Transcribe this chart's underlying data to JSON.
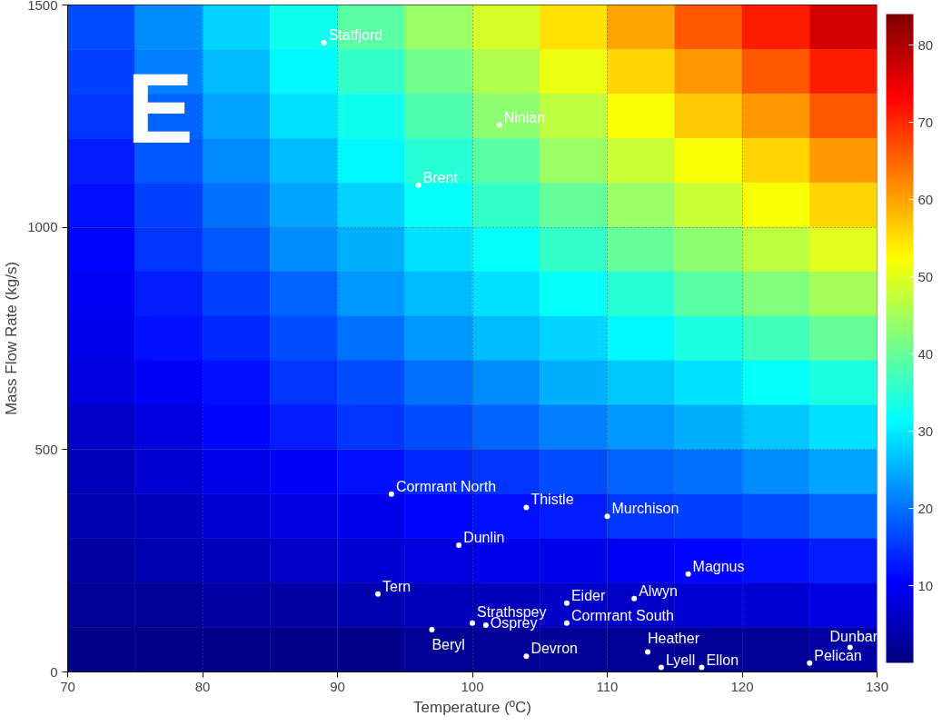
{
  "chart_data": [
    {
      "type": "scatter",
      "xlabel": "Temperature (ºC)",
      "ylabel": "Mass Flow Rate (kg/s)",
      "xlim": [
        70,
        130
      ],
      "xticks": [
        70,
        80,
        90,
        100,
        110,
        120,
        130
      ],
      "ylim": [
        0,
        1500
      ],
      "yticks": [
        0,
        500,
        1000,
        1500
      ],
      "grid": true,
      "marker": "circle",
      "series": [
        {
          "color": "#ffffff",
          "x": [
            89,
            102,
            96,
            94,
            104,
            110,
            99,
            116,
            93,
            107,
            112,
            100,
            101,
            107,
            97,
            113,
            104,
            114,
            117,
            128,
            125
          ],
          "values": [
            1415,
            1230,
            1095,
            400,
            370,
            350,
            285,
            220,
            175,
            155,
            165,
            110,
            105,
            110,
            95,
            45,
            35,
            10,
            10,
            55,
            20
          ]
        }
      ],
      "annotations": [
        "E",
        {
          "text": "Statfjord",
          "x": 89,
          "y": 1415
        },
        {
          "text": "Ninian",
          "x": 102,
          "y": 1230
        },
        {
          "text": "Brent",
          "x": 96,
          "y": 1095
        },
        {
          "text": "Cormrant North",
          "x": 94,
          "y": 400
        },
        {
          "text": "Thistle",
          "x": 104,
          "y": 370
        },
        {
          "text": "Murchison",
          "x": 110,
          "y": 350
        },
        {
          "text": "Dunlin",
          "x": 99,
          "y": 285
        },
        {
          "text": "Magnus",
          "x": 116,
          "y": 220
        },
        {
          "text": "Tern",
          "x": 93,
          "y": 175
        },
        {
          "text": "Eider",
          "x": 107,
          "y": 155
        },
        {
          "text": "Alwyn",
          "x": 112,
          "y": 165
        },
        {
          "text": "Strathspey",
          "x": 100,
          "y": 110
        },
        {
          "text": "Osprey",
          "x": 101,
          "y": 105
        },
        {
          "text": "Cormrant South",
          "x": 107,
          "y": 110
        },
        {
          "text": "Beryl",
          "x": 97,
          "y": 95
        },
        {
          "text": "Heather",
          "x": 113,
          "y": 45
        },
        {
          "text": "Devron",
          "x": 104,
          "y": 35
        },
        {
          "text": "Lyell",
          "x": 114,
          "y": 10
        },
        {
          "text": "Ellon",
          "x": 117,
          "y": 10
        },
        {
          "text": "Dunbar",
          "x": 128,
          "y": 55
        },
        {
          "text": "Pelican",
          "x": 125,
          "y": 20
        }
      ]
    },
    {
      "type": "heatmap",
      "clim": [
        0,
        84
      ],
      "cticks": [
        10,
        20,
        30,
        40,
        50,
        60,
        70,
        80
      ],
      "categories": [
        null,
        null,
        null,
        null,
        null,
        null,
        null,
        null,
        null,
        null,
        null,
        null
      ],
      "y_categories": [
        null,
        null,
        null,
        null,
        null,
        null,
        null,
        null,
        null,
        null,
        null,
        null,
        null,
        null,
        null
      ],
      "cells": [
        [
          17,
          22,
          28,
          33,
          39,
          44,
          49,
          55,
          60,
          66,
          71,
          77
        ],
        [
          16,
          21,
          26,
          31,
          36,
          41,
          46,
          51,
          56,
          61,
          66,
          71
        ],
        [
          15,
          19,
          24,
          29,
          33,
          38,
          43,
          47,
          52,
          57,
          61,
          66
        ],
        [
          13,
          18,
          22,
          26,
          31,
          35,
          39,
          44,
          48,
          52,
          56,
          61
        ],
        [
          12,
          16,
          20,
          24,
          28,
          32,
          36,
          40,
          44,
          48,
          52,
          56
        ],
        [
          11,
          15,
          18,
          22,
          25,
          29,
          32,
          36,
          40,
          43,
          47,
          50
        ],
        [
          10,
          13,
          16,
          19,
          23,
          26,
          29,
          32,
          35,
          39,
          42,
          45
        ],
        [
          9,
          12,
          14,
          17,
          20,
          23,
          26,
          28,
          31,
          34,
          37,
          40
        ],
        [
          8,
          10,
          12,
          15,
          17,
          20,
          22,
          25,
          27,
          29,
          32,
          34
        ],
        [
          6,
          8,
          11,
          13,
          15,
          17,
          19,
          21,
          23,
          25,
          27,
          29
        ],
        [
          5,
          7,
          9,
          10,
          12,
          14,
          15,
          17,
          19,
          20,
          22,
          24
        ],
        [
          4,
          5,
          7,
          8,
          9,
          11,
          12,
          13,
          15,
          16,
          17,
          19
        ],
        [
          3,
          4,
          5,
          6,
          7,
          8,
          9,
          9,
          10,
          11,
          12,
          13
        ],
        [
          2,
          2,
          3,
          3,
          4,
          5,
          5,
          6,
          6,
          7,
          7,
          8
        ],
        [
          1,
          1,
          1,
          1,
          1,
          2,
          2,
          2,
          2,
          2,
          2,
          3
        ]
      ]
    }
  ]
}
